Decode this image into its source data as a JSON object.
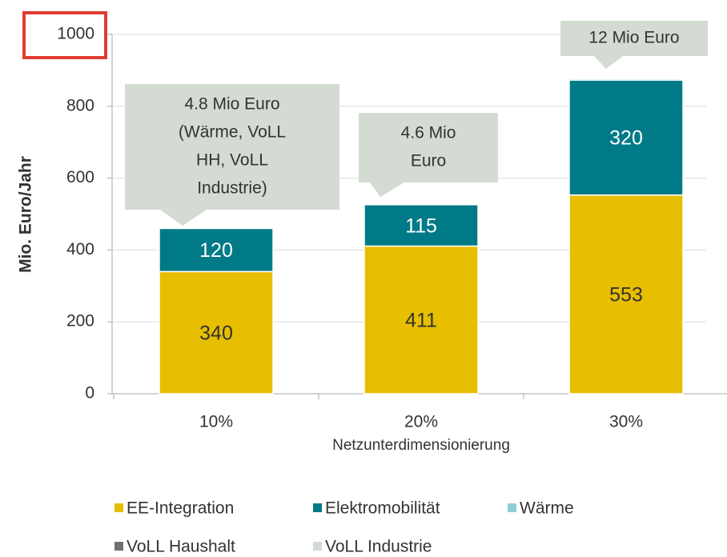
{
  "chart_data": {
    "type": "stacked_bar",
    "categories": [
      "10%",
      "20%",
      "30%"
    ],
    "x_label": "Netzunterdimensionierung",
    "y_label": "Mio. Euro/Jahr",
    "series": [
      {
        "name": "EE-Integration",
        "color": "#e8be00",
        "values": [
          340,
          411,
          553
        ]
      },
      {
        "name": "Elektromobilität",
        "color": "#007a87",
        "values": [
          120,
          115,
          320
        ]
      },
      {
        "name": "Wärme",
        "color": "#8fd0d3",
        "values": [
          0,
          0,
          4
        ]
      },
      {
        "name": "VoLL Haushalt",
        "color": "#707070",
        "values": [
          0,
          0,
          0
        ]
      },
      {
        "name": "VoLL Industrie",
        "color": "#d3dbd3",
        "values": [
          0,
          0,
          0
        ]
      }
    ],
    "ylim": [
      0,
      1000
    ],
    "yticks": [
      0,
      200,
      400,
      600,
      800,
      1000
    ],
    "grid": true,
    "annotations": [
      {
        "lines": [
          "4.8 Mio Euro",
          "(Wärme, VoLL",
          "HH, VoLL",
          "Industrie)"
        ]
      },
      {
        "lines": [
          "4.6 Mio",
          "Euro"
        ]
      },
      {
        "lines": [
          "12 Mio Euro"
        ]
      }
    ]
  }
}
